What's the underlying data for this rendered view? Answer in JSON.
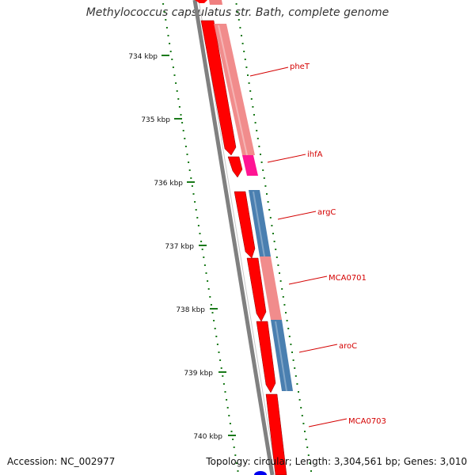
{
  "title": "Methylococcus capsulatus str. Bath, complete genome",
  "accession_text": "Accession: NC_002977",
  "topology_text": "Topology: circular; Length: 3,304,561 bp; Genes: 3,010",
  "colors": {
    "cds_red": "#ff0000",
    "pink": "#f08080",
    "magenta": "#ff1493",
    "steel_blue": "#4a7fb0",
    "backbone": "#808080",
    "tick_green": "#1a7a1a",
    "label_red": "#d40000"
  },
  "kbp_labels": [
    "734 kbp",
    "735 kbp",
    "736 kbp",
    "737 kbp",
    "738 kbp",
    "739 kbp",
    "740 kbp"
  ],
  "genes": [
    {
      "name": "pheT",
      "type": "pink"
    },
    {
      "name": "ihfA",
      "type": "magenta"
    },
    {
      "name": "argC",
      "type": "blue"
    },
    {
      "name": "MCA0701",
      "type": "pink"
    },
    {
      "name": "aroC",
      "type": "blue"
    },
    {
      "name": "MCA0703",
      "type": "pink"
    }
  ]
}
